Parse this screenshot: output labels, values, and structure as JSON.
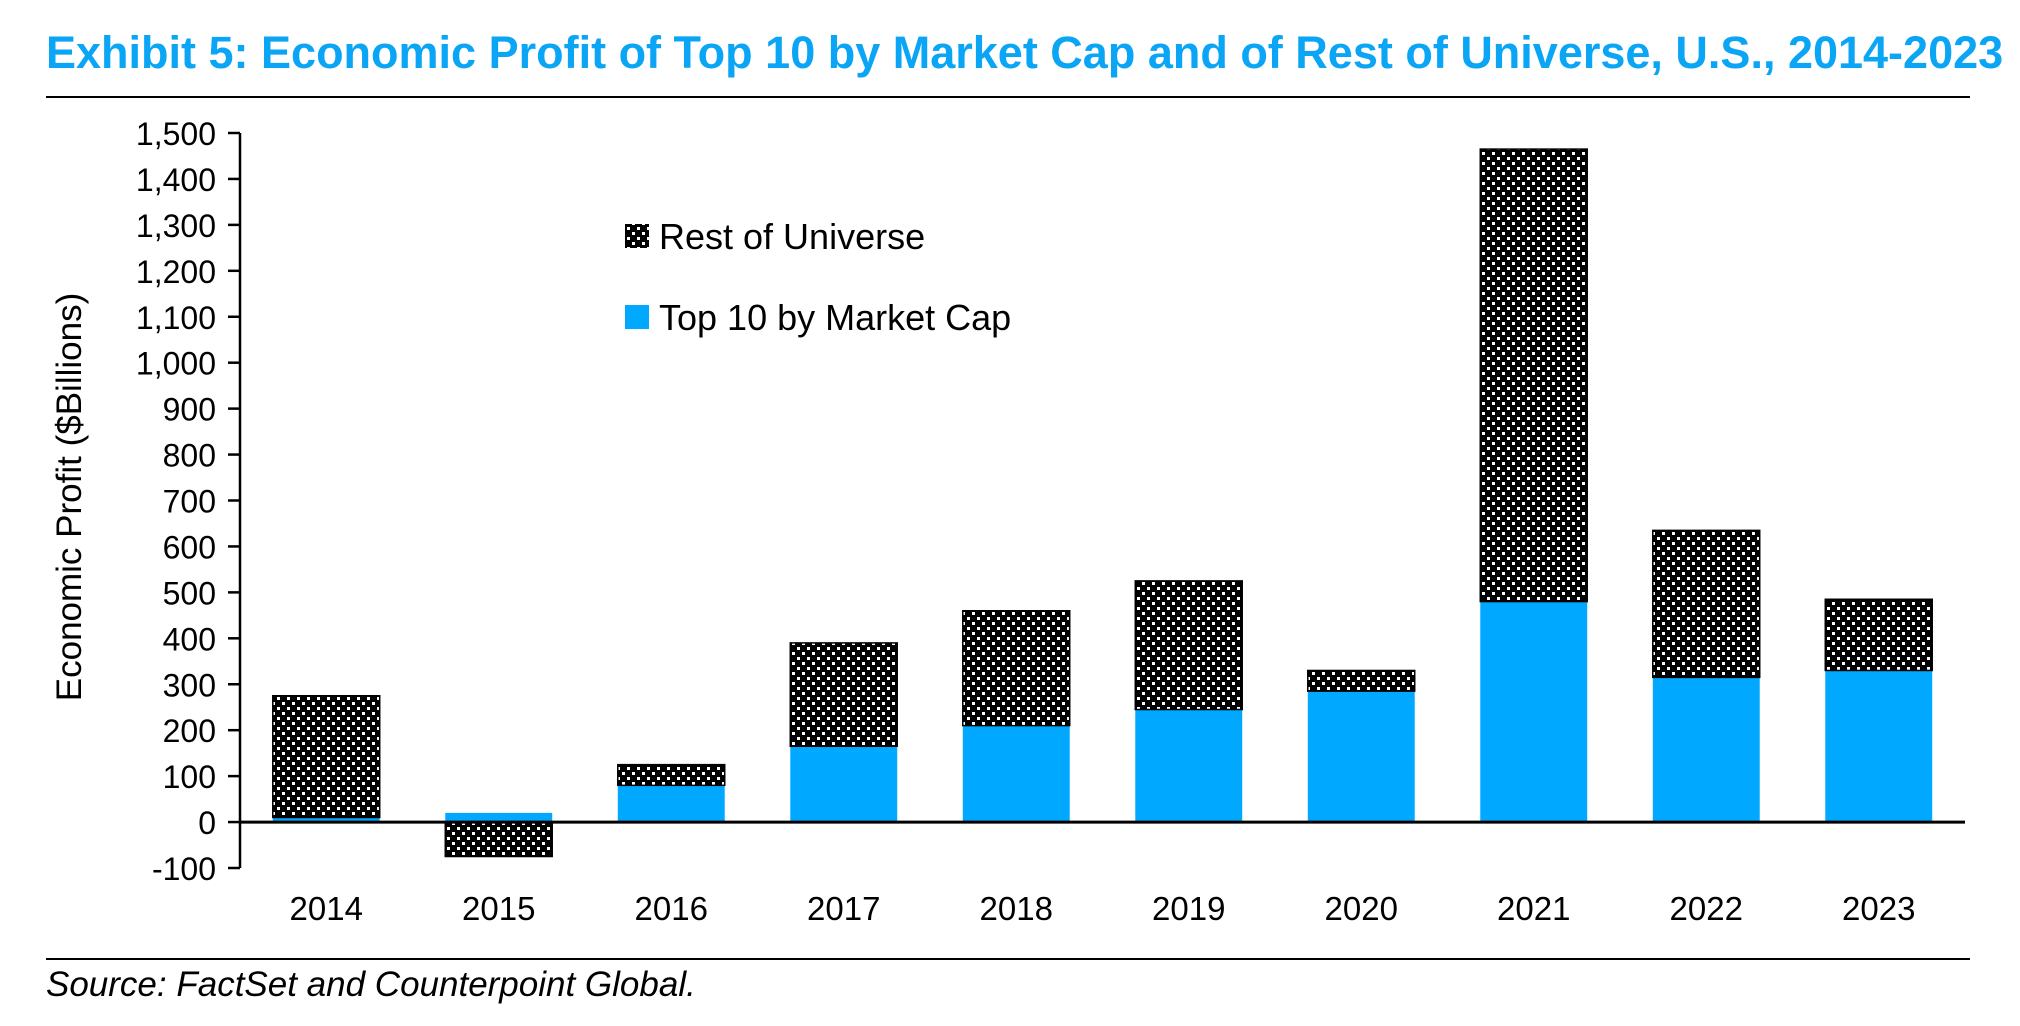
{
  "header": {
    "title": "Exhibit 5: Economic Profit of Top 10 by Market Cap and of Rest of Universe, U.S., 2014-2023",
    "title_color": "#0aa5f5"
  },
  "footer": {
    "source": "Source: FactSet and Counterpoint Global."
  },
  "chart_data": {
    "type": "bar",
    "stacked": true,
    "title": "",
    "xlabel": "",
    "ylabel": "Economic Profit ($Billions)",
    "ylim": [
      -100,
      1500
    ],
    "ytick_step": 100,
    "yticks": [
      "-100",
      "0",
      "100",
      "200",
      "300",
      "400",
      "500",
      "600",
      "700",
      "800",
      "900",
      "1,000",
      "1,100",
      "1,200",
      "1,300",
      "1,400",
      "1,500"
    ],
    "categories": [
      "2014",
      "2015",
      "2016",
      "2017",
      "2018",
      "2019",
      "2020",
      "2021",
      "2022",
      "2023"
    ],
    "grid": false,
    "legend_position": "top-center",
    "series": [
      {
        "name": "Top 10 by Market Cap",
        "color": "#00a8ff",
        "pattern": "solid",
        "values": [
          10,
          20,
          80,
          165,
          210,
          245,
          285,
          480,
          315,
          330
        ]
      },
      {
        "name": "Rest of Universe",
        "color": "#000000",
        "pattern": "dotted",
        "values": [
          265,
          -75,
          45,
          225,
          250,
          280,
          45,
          985,
          320,
          155
        ]
      }
    ],
    "legend_order": [
      "Rest of Universe",
      "Top 10 by Market Cap"
    ]
  }
}
